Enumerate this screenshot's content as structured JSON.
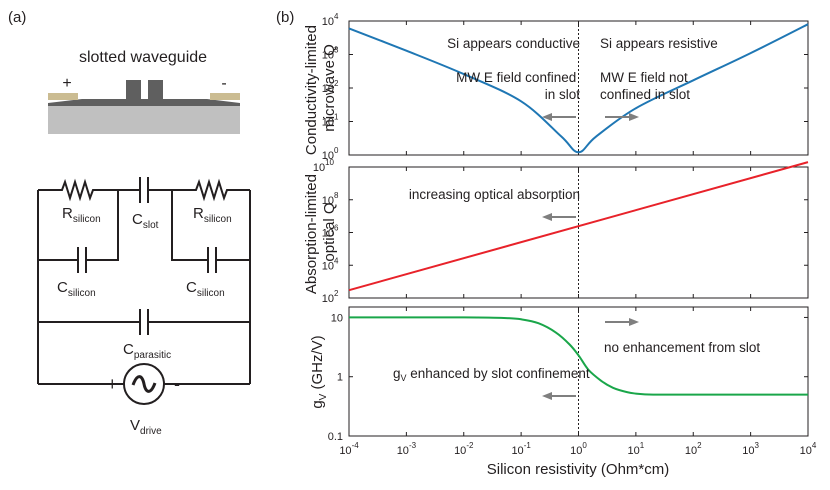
{
  "panel_a": {
    "label": "(a)",
    "waveguide_title": "slotted waveguide",
    "plus_sign": "+",
    "minus_sign": "-",
    "circuit": {
      "r_left": {
        "main": "R",
        "sub": "silicon"
      },
      "c_slot": {
        "main": "C",
        "sub": "slot"
      },
      "r_right": {
        "main": "R",
        "sub": "silicon"
      },
      "c_left": {
        "main": "C",
        "sub": "silicon"
      },
      "c_right": {
        "main": "C",
        "sub": "silicon"
      },
      "c_parasitic": {
        "main": "C",
        "sub": "parasitic"
      },
      "v_drive": {
        "main": "V",
        "sub": "drive"
      },
      "src_plus": "+",
      "src_minus": "-"
    }
  },
  "panel_b": {
    "label": "(b)",
    "colors": {
      "blue": "#1f77b4",
      "red": "#e8222a",
      "green": "#1aa64a",
      "axis": "#231f20",
      "arrow": "#7f7f7f"
    }
  },
  "chart_data": [
    {
      "type": "line",
      "ylabel": "Conductivity-limited microwave Q",
      "ylabel_lines": [
        "Conductivity-limited",
        "microwave Q"
      ],
      "y_scale": "log",
      "ylim": [
        1,
        10000
      ],
      "yticks": [
        {
          "value": 1,
          "label": "10",
          "exp": "0"
        },
        {
          "value": 10,
          "label": "10",
          "exp": "1"
        },
        {
          "value": 100,
          "label": "10",
          "exp": "2"
        },
        {
          "value": 1000,
          "label": "10",
          "exp": "3"
        },
        {
          "value": 10000,
          "label": "10",
          "exp": "4"
        }
      ],
      "x_scale": "log",
      "xlim": [
        0.0001,
        10000
      ],
      "series": [
        {
          "color": "#1f77b4",
          "x": [
            0.0001,
            0.001,
            0.01,
            0.1,
            0.5,
            1,
            2,
            10,
            100,
            1000,
            10000
          ],
          "y": [
            6000,
            1300,
            260,
            40,
            3.6,
            1.2,
            3.5,
            25,
            170,
            1100,
            8000
          ]
        }
      ],
      "annotations": [
        {
          "text": "Si appears conductive",
          "side": "left"
        },
        {
          "text": "Si appears resistive",
          "side": "right"
        },
        {
          "text": "MW E field confined in slot",
          "lines": [
            "MW E field confined",
            "in slot"
          ],
          "side": "left"
        },
        {
          "text": "MW E field not confined in slot",
          "lines": [
            "MW E field not",
            "confined in slot"
          ],
          "side": "right"
        }
      ],
      "arrows": [
        "left",
        "right"
      ],
      "vline_x": 1
    },
    {
      "type": "line",
      "ylabel": "Absorption-limited optical Q",
      "ylabel_lines": [
        "Absorption-limited",
        "optical Q"
      ],
      "y_scale": "log",
      "ylim": [
        100,
        10000000000
      ],
      "yticks": [
        {
          "value": 100,
          "label": "10",
          "exp": "2"
        },
        {
          "value": 10000,
          "label": "10",
          "exp": "4"
        },
        {
          "value": 1000000,
          "label": "10",
          "exp": "6"
        },
        {
          "value": 100000000,
          "label": "10",
          "exp": "8"
        },
        {
          "value": 10000000000,
          "label": "10",
          "exp": "10"
        }
      ],
      "x_scale": "log",
      "xlim": [
        0.0001,
        10000
      ],
      "series": [
        {
          "color": "#e8222a",
          "x": [
            0.0001,
            10000
          ],
          "y": [
            300,
            20000000000
          ]
        }
      ],
      "annotations": [
        {
          "text": "increasing optical absorption",
          "side": "left"
        }
      ],
      "arrows": [
        "left"
      ],
      "vline_x": 1
    },
    {
      "type": "line",
      "ylabel": "gV (GHz/V)",
      "ylabel_main": "g",
      "ylabel_sub": "V",
      "ylabel_rest": " (GHz/V)",
      "y_scale": "log",
      "ylim": [
        0.1,
        15
      ],
      "yticks": [
        {
          "value": 0.1,
          "label": "0.1"
        },
        {
          "value": 1,
          "label": "1"
        },
        {
          "value": 10,
          "label": "10"
        }
      ],
      "x_scale": "log",
      "xlabel": "Silicon resistivity (Ohm*cm)",
      "xlim": [
        0.0001,
        10000
      ],
      "xticks": [
        {
          "value": 0.0001,
          "label": "10",
          "exp": "-4"
        },
        {
          "value": 0.001,
          "label": "10",
          "exp": "-3"
        },
        {
          "value": 0.01,
          "label": "10",
          "exp": "-2"
        },
        {
          "value": 0.1,
          "label": "10",
          "exp": "-1"
        },
        {
          "value": 1,
          "label": "10",
          "exp": "0"
        },
        {
          "value": 10,
          "label": "10",
          "exp": "1"
        },
        {
          "value": 100,
          "label": "10",
          "exp": "2"
        },
        {
          "value": 1000,
          "label": "10",
          "exp": "3"
        },
        {
          "value": 10000,
          "label": "10",
          "exp": "4"
        }
      ],
      "series": [
        {
          "color": "#1aa64a",
          "x": [
            0.0001,
            0.001,
            0.01,
            0.05,
            0.1,
            0.2,
            0.4,
            0.7,
            1,
            1.5,
            2.5,
            4,
            7,
            10,
            20,
            100,
            1000,
            10000
          ],
          "y": [
            10,
            10,
            10,
            9.8,
            9.3,
            8,
            5.6,
            3.5,
            2.3,
            1.3,
            0.85,
            0.65,
            0.55,
            0.52,
            0.5,
            0.5,
            0.5,
            0.5
          ]
        }
      ],
      "annotations": [
        {
          "text": "no enhancement from slot",
          "side": "right"
        },
        {
          "text": "gV enhanced by slot confinement",
          "main": "g",
          "sub": "V",
          "rest": " enhanced by slot confinement",
          "side": "left"
        }
      ],
      "arrows": [
        "right",
        "left"
      ],
      "vline_x": 1
    }
  ]
}
